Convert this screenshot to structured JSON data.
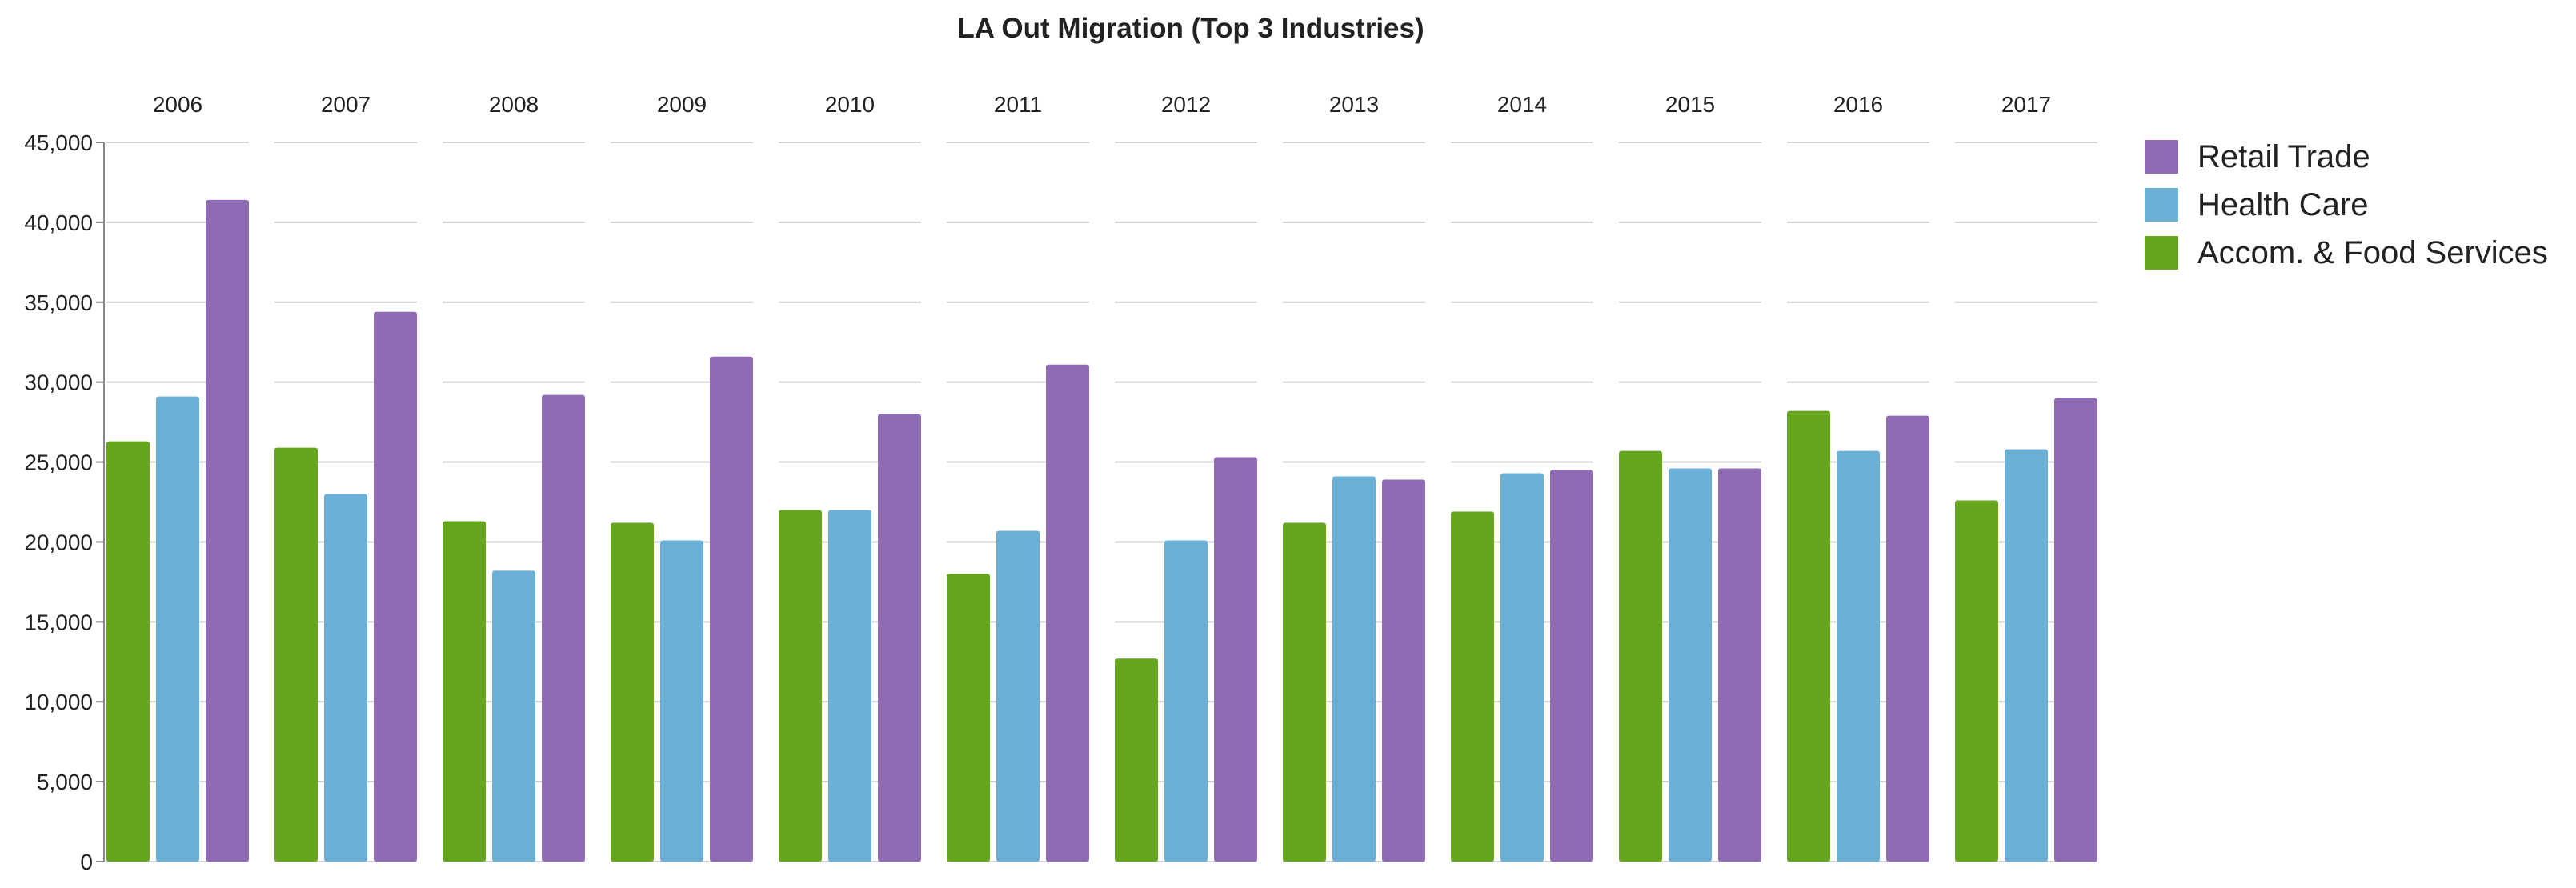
{
  "chart_data": {
    "type": "bar",
    "title": "LA Out Migration (Top 3 Industries)",
    "xlabel": "",
    "ylabel": "",
    "ylim": [
      0,
      45000
    ],
    "yticks": [
      0,
      5000,
      10000,
      15000,
      20000,
      25000,
      30000,
      35000,
      40000,
      45000
    ],
    "ytick_labels": [
      "0",
      "5,000",
      "10,000",
      "15,000",
      "20,000",
      "25,000",
      "30,000",
      "35,000",
      "40,000",
      "45,000"
    ],
    "grid": true,
    "legend_position": "right",
    "categories": [
      "2006",
      "2007",
      "2008",
      "2009",
      "2010",
      "2011",
      "2012",
      "2013",
      "2014",
      "2015",
      "2016",
      "2017"
    ],
    "series": [
      {
        "name": "Accom. & Food Services",
        "color": "#66a61e",
        "values": [
          26300,
          25900,
          21300,
          21200,
          22000,
          18000,
          12700,
          21200,
          21900,
          25700,
          28200,
          22600
        ]
      },
      {
        "name": "Health Care",
        "color": "#6baed6",
        "values": [
          29100,
          23000,
          18200,
          20100,
          22000,
          20700,
          20100,
          24100,
          24300,
          24600,
          25700,
          25800
        ]
      },
      {
        "name": "Retail Trade",
        "color": "#8e6bb3",
        "values": [
          41400,
          34400,
          29200,
          31600,
          28000,
          31100,
          25300,
          23900,
          24500,
          24600,
          27900,
          29000
        ]
      }
    ],
    "legend_order": [
      "Retail Trade",
      "Health Care",
      "Accom. & Food Services"
    ]
  }
}
